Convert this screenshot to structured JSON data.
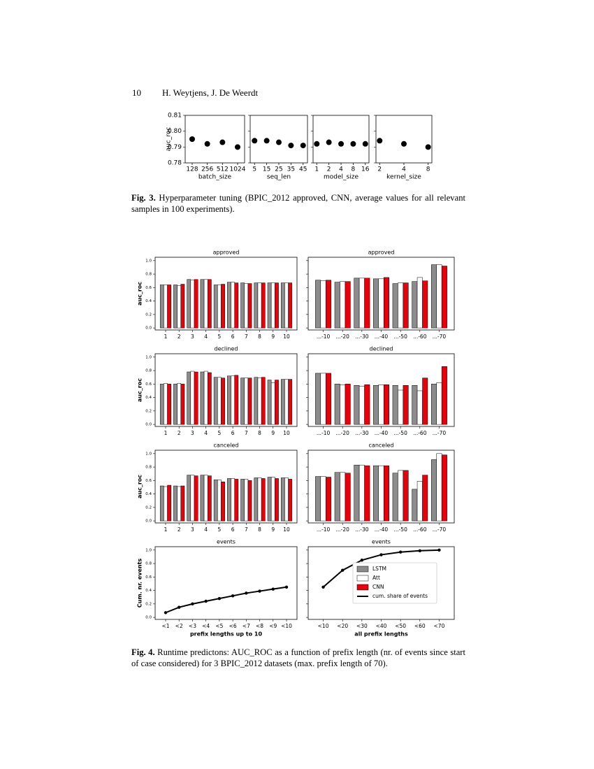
{
  "header": {
    "page_number": "10",
    "authors": "H. Weytjens, J. De Weerdt"
  },
  "fig3_caption": {
    "label": "Fig. 3.",
    "text": "Hyperparameter tuning (BPIC_2012 approved, CNN, average values for all relevant samples in 100 experiments)."
  },
  "fig4_caption": {
    "label": "Fig. 4.",
    "text": "Runtime predictons: AUC_ROC as a function of prefix length (nr. of events since start of case considered) for 3 BPIC_2012 datasets (max. prefix length of 70)."
  },
  "chart_data": [
    {
      "type": "scatter",
      "xlabel": "batch_size",
      "ylabel": "auc_roc",
      "x": [
        128,
        256,
        512,
        1024
      ],
      "values": [
        0.795,
        0.792,
        0.793,
        0.79
      ],
      "color": "#000000",
      "xlog": true,
      "xlim": [
        93,
        1410
      ],
      "xticks": [
        128,
        256,
        512,
        1024
      ],
      "ylim": [
        0.78,
        0.81
      ],
      "yticks": [
        0.78,
        0.79,
        {
          "value": 0.8,
          "label": "0.80"
        },
        0.81
      ]
    },
    {
      "type": "scatter",
      "xlabel": "seq_len",
      "x": [
        5,
        15,
        25,
        35,
        45
      ],
      "values": [
        0.794,
        0.794,
        0.793,
        0.791,
        0.791
      ],
      "color": "#000000",
      "xlog": false,
      "xlim": [
        1.4,
        48.6
      ],
      "xticks": [
        5,
        15,
        25,
        35,
        45
      ],
      "ylim": [
        0.78,
        0.81
      ],
      "yticks": [
        0.78,
        0.79,
        0.8,
        0.81
      ],
      "sharey": true
    },
    {
      "type": "scatter",
      "xlabel": "model_size",
      "x": [
        1,
        2,
        4,
        8,
        16
      ],
      "values": [
        0.792,
        0.793,
        0.792,
        0.792,
        0.792
      ],
      "color": "#000000",
      "xlog": true,
      "xlim": [
        0.81,
        19.7
      ],
      "xticks": [
        1,
        2,
        4,
        8,
        16
      ],
      "ylim": [
        0.78,
        0.81
      ],
      "yticks": [
        0.78,
        0.79,
        0.8,
        0.81
      ],
      "sharey": true
    },
    {
      "type": "scatter",
      "xlabel": "kernel_size",
      "x": [
        2,
        4,
        8
      ],
      "values": [
        0.794,
        0.792,
        0.79
      ],
      "color": "#000000",
      "xlog": true,
      "xlim": [
        1.8,
        8.9
      ],
      "xticks": [
        2,
        4,
        8
      ],
      "ylim": [
        0.78,
        0.81
      ],
      "yticks": [
        0.78,
        0.79,
        0.8,
        0.81
      ],
      "sharey": true
    },
    {
      "type": "bar",
      "title": "approved",
      "ylabel": "auc_roc",
      "categories": [
        "1",
        "2",
        "3",
        "4",
        "5",
        "6",
        "7",
        "8",
        "9",
        "10"
      ],
      "series": [
        {
          "name": "LSTM",
          "color": "#8c8c8c",
          "values": [
            0.64,
            0.64,
            0.72,
            0.72,
            0.64,
            0.68,
            0.67,
            0.67,
            0.67,
            0.67
          ]
        },
        {
          "name": "Att",
          "color": "#ffffff",
          "values": [
            0.64,
            0.63,
            0.71,
            0.72,
            0.64,
            0.68,
            0.66,
            0.67,
            0.67,
            0.67
          ]
        },
        {
          "name": "CNN",
          "color": "#e8000b",
          "values": [
            0.64,
            0.65,
            0.72,
            0.72,
            0.65,
            0.67,
            0.66,
            0.67,
            0.67,
            0.67
          ]
        }
      ],
      "ylim": [
        -0.03,
        1.05
      ],
      "yticks": [
        {
          "value": 0,
          "label": "0.0"
        },
        0.2,
        0.4,
        0.6,
        0.8,
        {
          "value": 1,
          "label": "1.0"
        }
      ]
    },
    {
      "type": "bar",
      "title": "approved",
      "categories": [
        "...-10",
        "...-20",
        "...-30",
        "...-40",
        "...-50",
        "...-60",
        "...-70"
      ],
      "series": [
        {
          "name": "LSTM",
          "color": "#8c8c8c",
          "values": [
            0.71,
            0.68,
            0.74,
            0.73,
            0.66,
            0.69,
            0.94
          ]
        },
        {
          "name": "Att",
          "color": "#ffffff",
          "values": [
            0.7,
            0.69,
            0.74,
            0.73,
            0.67,
            0.75,
            0.94
          ]
        },
        {
          "name": "CNN",
          "color": "#e8000b",
          "values": [
            0.71,
            0.69,
            0.74,
            0.75,
            0.67,
            0.7,
            0.92
          ]
        }
      ],
      "ylim": [
        -0.03,
        1.05
      ],
      "yticks": [
        0,
        0.2,
        0.4,
        0.6,
        0.8,
        1
      ],
      "sharey": true
    },
    {
      "type": "bar",
      "title": "declined",
      "ylabel": "auc_roc",
      "categories": [
        "1",
        "2",
        "3",
        "4",
        "5",
        "6",
        "7",
        "8",
        "9",
        "10"
      ],
      "series": [
        {
          "name": "LSTM",
          "color": "#8c8c8c",
          "values": [
            0.6,
            0.6,
            0.78,
            0.78,
            0.7,
            0.72,
            0.69,
            0.7,
            0.66,
            0.67
          ]
        },
        {
          "name": "Att",
          "color": "#ffffff",
          "values": [
            0.61,
            0.61,
            0.79,
            0.79,
            0.7,
            0.72,
            0.69,
            0.69,
            0.62,
            0.67
          ]
        },
        {
          "name": "CNN",
          "color": "#e8000b",
          "values": [
            0.6,
            0.6,
            0.78,
            0.77,
            0.69,
            0.73,
            0.69,
            0.7,
            0.66,
            0.67
          ]
        }
      ],
      "ylim": [
        -0.03,
        1.05
      ],
      "yticks": [
        {
          "value": 0,
          "label": "0.0"
        },
        0.2,
        0.4,
        0.6,
        0.8,
        {
          "value": 1,
          "label": "1.0"
        }
      ]
    },
    {
      "type": "bar",
      "title": "declined",
      "categories": [
        "...-10",
        "...-20",
        "...-30",
        "...-40",
        "...-50",
        "...-60",
        "...-70"
      ],
      "series": [
        {
          "name": "LSTM",
          "color": "#8c8c8c",
          "values": [
            0.76,
            0.6,
            0.58,
            0.58,
            0.58,
            0.58,
            0.6
          ]
        },
        {
          "name": "Att",
          "color": "#ffffff",
          "values": [
            0.76,
            0.59,
            0.57,
            0.59,
            0.51,
            0.5,
            0.62
          ]
        },
        {
          "name": "CNN",
          "color": "#e8000b",
          "values": [
            0.76,
            0.6,
            0.59,
            0.59,
            0.58,
            0.69,
            0.86
          ]
        }
      ],
      "ylim": [
        -0.03,
        1.05
      ],
      "yticks": [
        0,
        0.2,
        0.4,
        0.6,
        0.8,
        1
      ],
      "sharey": true
    },
    {
      "type": "bar",
      "title": "canceled",
      "ylabel": "auc_roc",
      "categories": [
        "1",
        "2",
        "3",
        "4",
        "5",
        "6",
        "7",
        "8",
        "9",
        "10"
      ],
      "series": [
        {
          "name": "LSTM",
          "color": "#8c8c8c",
          "values": [
            0.52,
            0.52,
            0.68,
            0.68,
            0.61,
            0.63,
            0.62,
            0.64,
            0.65,
            0.64
          ]
        },
        {
          "name": "Att",
          "color": "#ffffff",
          "values": [
            0.51,
            0.51,
            0.68,
            0.68,
            0.61,
            0.63,
            0.62,
            0.64,
            0.65,
            0.64
          ]
        },
        {
          "name": "CNN",
          "color": "#e8000b",
          "values": [
            0.53,
            0.52,
            0.67,
            0.67,
            0.58,
            0.62,
            0.6,
            0.63,
            0.63,
            0.62
          ]
        }
      ],
      "ylim": [
        -0.03,
        1.05
      ],
      "yticks": [
        {
          "value": 0,
          "label": "0.0"
        },
        0.2,
        0.4,
        0.6,
        0.8,
        {
          "value": 1,
          "label": "1.0"
        }
      ]
    },
    {
      "type": "bar",
      "title": "canceled",
      "categories": [
        "...-10",
        "...-20",
        "...-30",
        "...-40",
        "...-50",
        "...-60",
        "...-70"
      ],
      "series": [
        {
          "name": "LSTM",
          "color": "#8c8c8c",
          "values": [
            0.66,
            0.72,
            0.83,
            0.82,
            0.71,
            0.47,
            0.91
          ]
        },
        {
          "name": "Att",
          "color": "#ffffff",
          "values": [
            0.66,
            0.72,
            0.83,
            0.82,
            0.75,
            0.59,
            1.0
          ]
        },
        {
          "name": "CNN",
          "color": "#e8000b",
          "values": [
            0.65,
            0.71,
            0.82,
            0.82,
            0.75,
            0.68,
            0.98
          ]
        }
      ],
      "ylim": [
        -0.03,
        1.05
      ],
      "yticks": [
        0,
        0.2,
        0.4,
        0.6,
        0.8,
        1
      ],
      "sharey": true
    },
    {
      "type": "line",
      "title": "events",
      "ylabel": "Cum. nr. events",
      "xlabel": "prefix lengths up to 10",
      "categories": [
        "<1",
        "<2",
        "<3",
        "<4",
        "<5",
        "<6",
        "<7",
        "<8",
        "<9",
        "<10"
      ],
      "series": [
        {
          "name": "cum. share of events",
          "color": "#000000",
          "values": [
            0.07,
            0.15,
            0.2,
            0.24,
            0.28,
            0.32,
            0.36,
            0.39,
            0.42,
            0.45
          ]
        }
      ],
      "ylim": [
        -0.03,
        1.05
      ],
      "yticks": [
        {
          "value": 0,
          "label": "0.0"
        },
        0.2,
        0.4,
        0.6,
        0.8,
        {
          "value": 1,
          "label": "1.0"
        }
      ]
    },
    {
      "type": "line",
      "title": "events",
      "xlabel": "all prefix lengths",
      "categories": [
        "<10",
        "<20",
        "<30",
        "<40",
        "<50",
        "<60",
        "<70"
      ],
      "series": [
        {
          "name": "cum. share of events",
          "color": "#000000",
          "values": [
            0.45,
            0.7,
            0.85,
            0.93,
            0.97,
            0.99,
            1.0
          ]
        }
      ],
      "ylim": [
        -0.03,
        1.05
      ],
      "yticks": [
        0,
        0.2,
        0.4,
        0.6,
        0.8,
        1
      ],
      "sharey": true,
      "legend": {
        "loc": "center right",
        "entries": [
          {
            "name": "LSTM",
            "color": "#8c8c8c"
          },
          {
            "name": "Att",
            "color": "#ffffff"
          },
          {
            "name": "CNN",
            "color": "#e8000b"
          }
        ]
      }
    }
  ]
}
